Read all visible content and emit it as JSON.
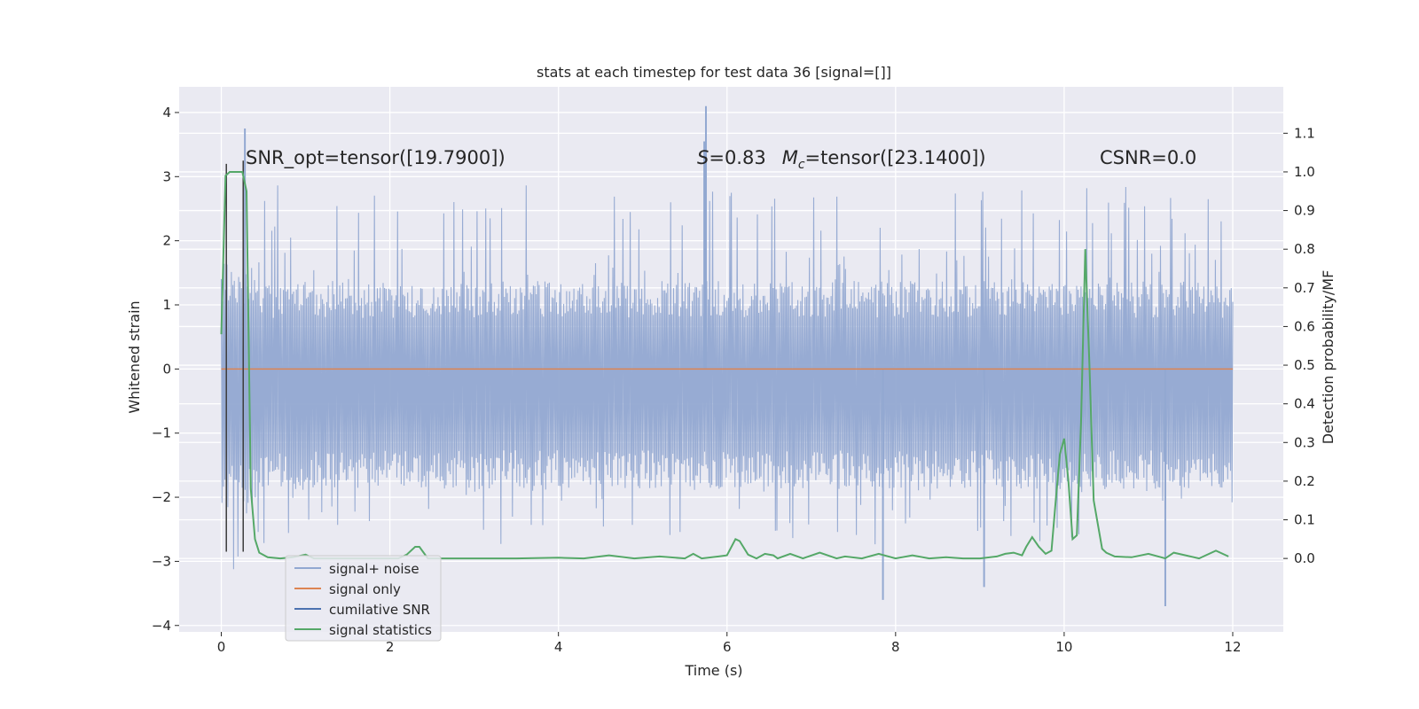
{
  "chart_data": {
    "type": "line",
    "title": "stats at each timestep for test data 36 [signal=[]]",
    "xlabel": "Time (s)",
    "ylabel": "Whitened strain",
    "ylabel_right": "Detection probability/MF",
    "xlim": [
      -0.5,
      12.6
    ],
    "ylim": [
      -4.1,
      4.4
    ],
    "ylim_right": [
      -0.19,
      1.22
    ],
    "x_ticks": [
      0,
      2,
      4,
      6,
      8,
      10,
      12
    ],
    "x_tick_labels": [
      "0",
      "2",
      "4",
      "6",
      "8",
      "10",
      "12"
    ],
    "y_ticks": [
      -4,
      -3,
      -2,
      -1,
      0,
      1,
      2,
      3,
      4
    ],
    "y_tick_labels": [
      "−4",
      "−3",
      "−2",
      "−1",
      "0",
      "1",
      "2",
      "3",
      "4"
    ],
    "y_right_ticks": [
      0.0,
      0.1,
      0.2,
      0.3,
      0.4,
      0.5,
      0.6,
      0.7,
      0.8,
      0.9,
      1.0,
      1.1
    ],
    "y_right_tick_labels": [
      "0.0",
      "0.1",
      "0.2",
      "0.3",
      "0.4",
      "0.5",
      "0.6",
      "0.7",
      "0.8",
      "0.9",
      "1.0",
      "1.1"
    ],
    "grid": true,
    "annotations": {
      "snr": "SNR_opt=tensor([19.7900])",
      "s_symbol": "S",
      "s_value": "=0.83",
      "mc_symbol": "M",
      "mc_sub": "c",
      "mc_value": "=tensor([23.1400])",
      "csnr": "CSNR=0.0"
    },
    "legend": {
      "placement": "lower-left",
      "entries": [
        {
          "label": "signal+ noise",
          "color": "#92a8d1"
        },
        {
          "label": "signal only",
          "color": "#dd8452"
        },
        {
          "label": "cumilative SNR",
          "color": "#4c72b0"
        },
        {
          "label": "signal statistics",
          "color": "#55a868"
        }
      ]
    },
    "series": [
      {
        "name": "signal+ noise",
        "color": "#92a8d1",
        "x_range": [
          0,
          12
        ],
        "samples": 1400,
        "band": [
          -1.95,
          1.45
        ],
        "notable_peaks": [
          {
            "x": 0.28,
            "y": 3.75
          },
          {
            "x": 5.75,
            "y": 4.1
          },
          {
            "x": 5.73,
            "y": 3.55
          },
          {
            "x": 7.85,
            "y": -3.6
          },
          {
            "x": 9.05,
            "y": -3.4
          },
          {
            "x": 11.2,
            "y": -3.7
          }
        ]
      },
      {
        "name": "signal only",
        "color": "#dd8452",
        "x": [
          0,
          12
        ],
        "values": [
          0,
          0
        ]
      },
      {
        "name": "cumilative SNR",
        "color": "#4c72b0",
        "vlines": [
          {
            "x": 0.06,
            "y0": -2.85,
            "y1": 3.2
          },
          {
            "x": 0.26,
            "y0": -2.85,
            "y1": 3.25
          }
        ]
      },
      {
        "name": "signal statistics",
        "color": "#55a868",
        "axis": "right",
        "x": [
          0,
          0.05,
          0.1,
          0.2,
          0.25,
          0.3,
          0.35,
          0.4,
          0.45,
          0.55,
          0.7,
          0.85,
          1.0,
          1.1,
          1.3,
          1.5,
          1.8,
          2.1,
          2.2,
          2.3,
          2.35,
          2.45,
          2.6,
          3.0,
          3.5,
          4.0,
          4.3,
          4.6,
          4.9,
          5.2,
          5.5,
          5.6,
          5.7,
          5.9,
          6.0,
          6.1,
          6.15,
          6.25,
          6.35,
          6.45,
          6.55,
          6.6,
          6.75,
          6.9,
          7.1,
          7.3,
          7.4,
          7.6,
          7.8,
          8.0,
          8.2,
          8.4,
          8.6,
          8.8,
          9.0,
          9.2,
          9.3,
          9.4,
          9.5,
          9.55,
          9.62,
          9.7,
          9.78,
          9.85,
          9.9,
          9.95,
          10.0,
          10.05,
          10.1,
          10.15,
          10.2,
          10.25,
          10.3,
          10.35,
          10.45,
          10.5,
          10.6,
          10.8,
          11.0,
          11.2,
          11.3,
          11.6,
          11.8,
          11.95
        ],
        "values": [
          0.58,
          0.99,
          1.0,
          1.0,
          1.0,
          0.95,
          0.18,
          0.05,
          0.015,
          0.003,
          0.0,
          0.003,
          0.01,
          0.0,
          0.0,
          0.0,
          0.0,
          0.0,
          0.01,
          0.03,
          0.03,
          0.0,
          0.0,
          0.0,
          0.0,
          0.002,
          0.0,
          0.008,
          0.0,
          0.005,
          0.0,
          0.012,
          0.0,
          0.005,
          0.008,
          0.05,
          0.045,
          0.01,
          0.0,
          0.012,
          0.008,
          0.0,
          0.012,
          0.0,
          0.015,
          0.0,
          0.005,
          0.0,
          0.012,
          0.0,
          0.008,
          0.0,
          0.003,
          0.0,
          0.0,
          0.005,
          0.012,
          0.015,
          0.008,
          0.03,
          0.055,
          0.03,
          0.012,
          0.02,
          0.15,
          0.27,
          0.31,
          0.2,
          0.05,
          0.06,
          0.35,
          0.8,
          0.5,
          0.15,
          0.025,
          0.015,
          0.005,
          0.003,
          0.012,
          0.0,
          0.015,
          0.0,
          0.02,
          0.005
        ]
      }
    ]
  }
}
